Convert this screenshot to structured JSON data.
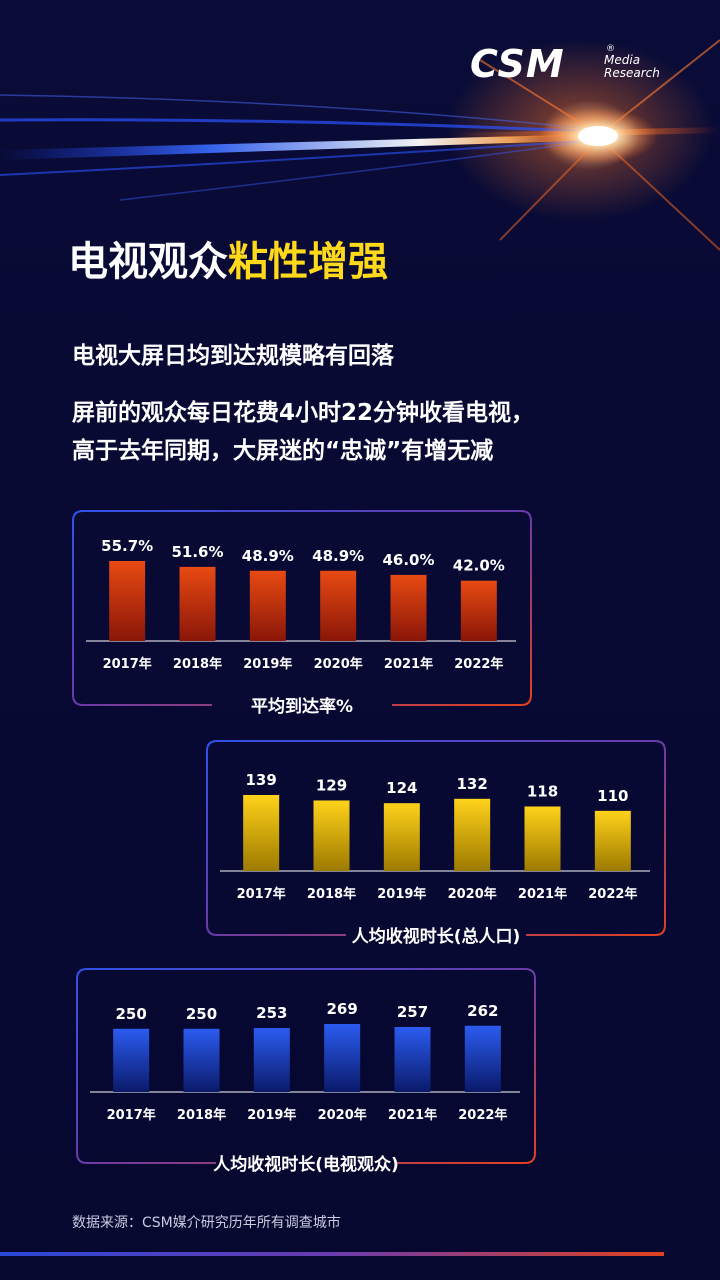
{
  "logo": {
    "brand": "CSM",
    "reg": "®",
    "line1": "Media",
    "line2": "Research"
  },
  "title": {
    "part1": "电视观众",
    "part2": "粘性增强",
    "highlight_color": "#ffd91a"
  },
  "subtitle1": "电视大屏日均到达规模略有回落",
  "subtitle2": [
    "屏前的观众每日花费4小时22分钟收看电视，",
    "高于去年同期，大屏迷的“忠诚”有增无减"
  ],
  "source": "数据来源：CSM媒介研究历年所有调查城市",
  "chart_data": [
    {
      "type": "bar",
      "title": "平均到达率%",
      "categories": [
        "2017年",
        "2018年",
        "2019年",
        "2020年",
        "2021年",
        "2022年"
      ],
      "values": [
        55.7,
        51.6,
        48.9,
        48.9,
        46.0,
        42.0
      ],
      "value_labels": [
        "55.7%",
        "51.6%",
        "48.9%",
        "48.9%",
        "46.0%",
        "42.0%"
      ],
      "colors": {
        "top": "#e84a12",
        "bottom": "#8a1608"
      }
    },
    {
      "type": "bar",
      "title": "人均收视时长(总人口)",
      "categories": [
        "2017年",
        "2018年",
        "2019年",
        "2020年",
        "2021年",
        "2022年"
      ],
      "values": [
        139,
        129,
        124,
        132,
        118,
        110
      ],
      "value_labels": [
        "139",
        "129",
        "124",
        "132",
        "118",
        "110"
      ],
      "colors": {
        "top": "#ffd21a",
        "bottom": "#9c7a00"
      }
    },
    {
      "type": "bar",
      "title": "人均收视时长(电视观众)",
      "categories": [
        "2017年",
        "2018年",
        "2019年",
        "2020年",
        "2021年",
        "2022年"
      ],
      "values": [
        250,
        250,
        253,
        269,
        257,
        262
      ],
      "value_labels": [
        "250",
        "250",
        "253",
        "269",
        "257",
        "262"
      ],
      "colors": {
        "top": "#2b5cf0",
        "bottom": "#0a1a6a"
      }
    }
  ]
}
